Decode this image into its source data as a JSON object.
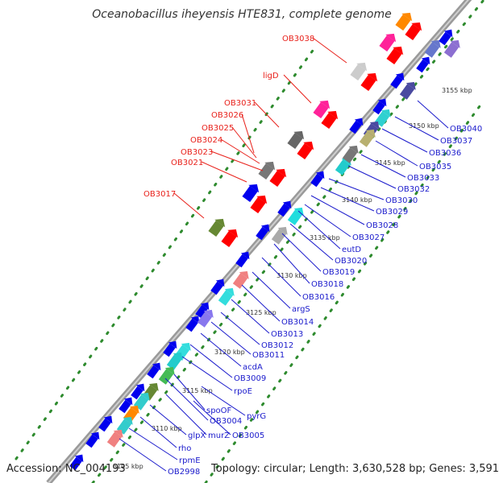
{
  "title": "Oceanobacillus iheyensis HTE831, complete genome",
  "footer": {
    "accession": "Accession: NC_004193",
    "topology": "Topology: circular; Length: 3,630,528 bp; Genes: 3,591"
  },
  "colors": {
    "backbone": "#9a9a9a",
    "dots": "#2e8b2e",
    "forward_label": "#e8201a",
    "reverse_label": "#1a1acc",
    "gene_forward": "#ff0000",
    "gene_reverse": "#0000ee"
  },
  "kbp_ticks": [
    "3105 kbp",
    "3110 kbp",
    "3115 kbp",
    "3120 kbp",
    "3125 kbp",
    "3130 kbp",
    "3135 kbp",
    "3140 kbp",
    "3145 kbp",
    "3150 kbp",
    "3155 kbp"
  ],
  "forward_labels": [
    "OB3038",
    "ligD",
    "OB3031",
    "OB3026",
    "OB3025",
    "OB3024",
    "OB3023",
    "OB3021",
    "OB3017"
  ],
  "reverse_labels": [
    "OB3040",
    "OB3037",
    "OB3036",
    "OB3035",
    "OB3033",
    "OB3032",
    "OB3030",
    "OB3029",
    "OB3028",
    "OB3027",
    "eutD",
    "OB3020",
    "OB3019",
    "OB3018",
    "OB3016",
    "argS",
    "OB3014",
    "OB3013",
    "OB3012",
    "OB3011",
    "acdA",
    "OB3009",
    "rpoE",
    "pyrG",
    "spoOF",
    "OB3004",
    "OB3005",
    "murZ",
    "glpX",
    "rho",
    "rpmE",
    "OB2998"
  ]
}
